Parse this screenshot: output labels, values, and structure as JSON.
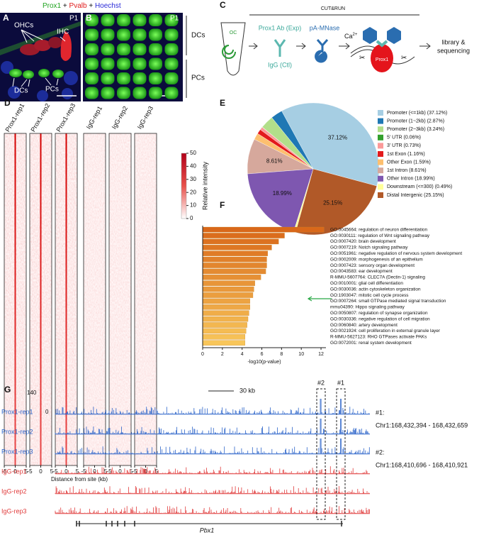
{
  "panels": {
    "A": {
      "letter": "A",
      "stage": "P1",
      "stain": [
        "Prox1",
        "+",
        "Pvalb",
        "+",
        "Hoechst"
      ],
      "labels": {
        "ohcs": "OHCs",
        "ihc": "IHC",
        "dcs": "DCs",
        "pcs": "PCs"
      }
    },
    "B": {
      "letter": "B",
      "stage": "P1",
      "groups": [
        "DCs",
        "PCs"
      ]
    },
    "C": {
      "letter": "C",
      "method": "CUT&RUN",
      "tube": "OC",
      "antibody_exp": "Prox1 Ab (Exp)",
      "antibody_ctl": "IgG (Ctl)",
      "enzyme": "pA-MNase",
      "ion": "Ca",
      "ion_charge": "2+",
      "protein": "Prox1",
      "output": [
        "library &",
        "sequencing"
      ]
    },
    "D": {
      "letter": "D",
      "samples": [
        "Prox1-rep1",
        "Prox1-rep2",
        "Prox1-rep3",
        "IgG-rep1",
        "IgG-rep2",
        "IgG-rep3"
      ],
      "xlim": [
        -5,
        5
      ],
      "xticks": [
        -5,
        0,
        5
      ],
      "xlabel": "Distance from site (kb)",
      "colorbar_label": "Relative intensity",
      "colorbar_lim": [
        0,
        50
      ],
      "colorbar_ticks": [
        0,
        10,
        20,
        30,
        40,
        50
      ]
    },
    "E": {
      "letter": "E"
    },
    "F": {
      "letter": "F"
    },
    "G": {
      "letter": "G",
      "track_lim": [
        0,
        140
      ],
      "scale_bar": "30 kb",
      "tracks": [
        "Prox1-rep1",
        "Prox1-rep2",
        "Prox1-rep3",
        "IgG-rep1",
        "IgG-rep2",
        "IgG-rep3"
      ],
      "peaks": [
        {
          "label": "#1",
          "key": "#1:",
          "coords": "Chr1:168,432,394 - 168,432,659"
        },
        {
          "label": "#2",
          "key": "#2:",
          "coords": "Chr1:168,410,696 - 168,410,921"
        }
      ],
      "gene": "Pbx1"
    }
  },
  "chart_data": [
    {
      "type": "pie",
      "categories": [
        "Promoter (<=1kb) (37.12%)",
        "Promoter (1~2kb) (2.87%)",
        "Promoter (2~3kb) (3.24%)",
        "5' UTR (0.06%)",
        "3' UTR (0.73%)",
        "1st Exon (1.16%)",
        "Other Exon (1.59%)",
        "1st Intron (8.61%)",
        "Other Intron (18.99%)",
        "Downstream (<=300) (0.49%)",
        "Distal Intergenic (25.15%)"
      ],
      "values": [
        37.12,
        2.87,
        3.24,
        0.06,
        0.73,
        1.16,
        1.59,
        8.61,
        18.99,
        0.49,
        25.15
      ],
      "value_labels": [
        "37.12%",
        null,
        null,
        null,
        null,
        null,
        null,
        "8.61%",
        "18.99%",
        null,
        "25.15%"
      ],
      "colors": [
        "#a6cee3",
        "#1f78b4",
        "#b2df8a",
        "#33a02c",
        "#fb9a99",
        "#e31a1c",
        "#fdbf6f",
        "#d6a89c",
        "#7e57b0",
        "#ffff99",
        "#b15928"
      ]
    },
    {
      "type": "bar",
      "orientation": "horizontal",
      "categories": [
        "GO:0045664: regulation of neuron differentiation",
        "GO:0030111: regulation of Wnt signaling pathway",
        "GO:0007420: brain development",
        "GO:0007219: Notch signaling pathway",
        "GO:0051961: negative regulation of nervous system development",
        "GO:0002009: morphogenesis of an epithelium",
        "GO:0007423: sensory organ development",
        "GO:0043583: ear development",
        "R-MMU-5607764: CLEC7A (Dectin-1) signaling",
        "GO:0010001: glial cell differentiation",
        "GO:0030036: actin cytoskeleton organization",
        "GO:1903047: mitotic cell cycle process",
        "GO:0007264: small GTPase mediated signal transduction",
        "mmu04390: Hippo signaling pathway",
        "GO:0050807: regulation of synapse organization",
        "GO:0030336: negative regulation of cell migration",
        "GO:0060840: artery development",
        "GO:0021924: cell proliferation in external granule layer",
        "R-MMU-5627123: RHO GTPases activate PAKs",
        "GO:0072001: renal system development"
      ],
      "values": [
        12.3,
        8.3,
        7.7,
        7.0,
        6.6,
        6.5,
        6.5,
        6.4,
        5.9,
        5.3,
        5.2,
        5.1,
        4.8,
        4.8,
        4.7,
        4.6,
        4.5,
        4.4,
        4.3,
        4.3
      ],
      "xlabel": "-log10(p-value)",
      "xlim": [
        0,
        12.5
      ],
      "xticks": [
        0,
        2,
        4,
        6,
        8,
        10,
        12
      ]
    }
  ]
}
